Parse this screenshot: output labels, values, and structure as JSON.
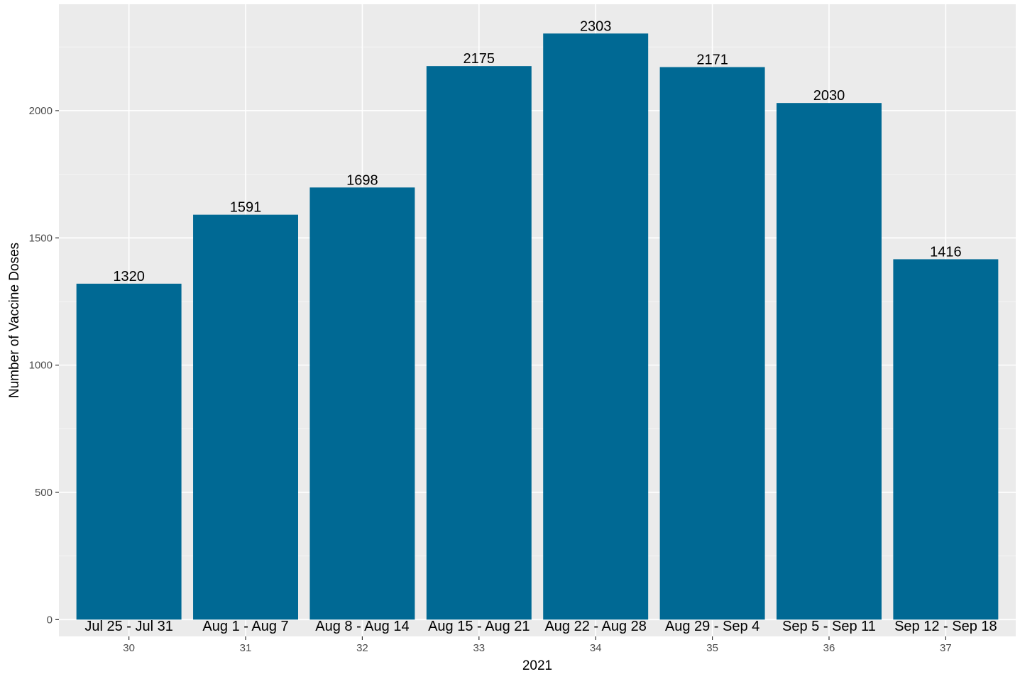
{
  "chart_data": {
    "type": "bar",
    "title": "",
    "xlabel": "2021",
    "ylabel": "Number of Vaccine Doses",
    "categories": [
      "Jul 25 - Jul 31",
      "Aug 1 - Aug 7",
      "Aug 8 - Aug 14",
      "Aug 15 - Aug 21",
      "Aug 22 - Aug 28",
      "Aug 29 - Sep 4",
      "Sep 5 - Sep 11",
      "Sep 12 - Sep 18"
    ],
    "week_numbers": [
      "30",
      "31",
      "32",
      "33",
      "34",
      "35",
      "36",
      "37"
    ],
    "values": [
      1320,
      1591,
      1698,
      2175,
      2303,
      2171,
      2030,
      1416
    ],
    "data_labels": [
      "1320",
      "1591",
      "1698",
      "2175",
      "2303",
      "2171",
      "2030",
      "1416"
    ],
    "yticks": [
      0,
      500,
      1000,
      1500,
      2000
    ],
    "ylim": [
      -66,
      2418
    ],
    "grid": true,
    "legend": "none",
    "colors": {
      "bar": "#006994",
      "panel_background": "#ebebeb",
      "grid_major": "#ffffff",
      "grid_minor": "#f5f5f5",
      "tick_text": "#4d4d4d",
      "text": "#000000"
    }
  }
}
